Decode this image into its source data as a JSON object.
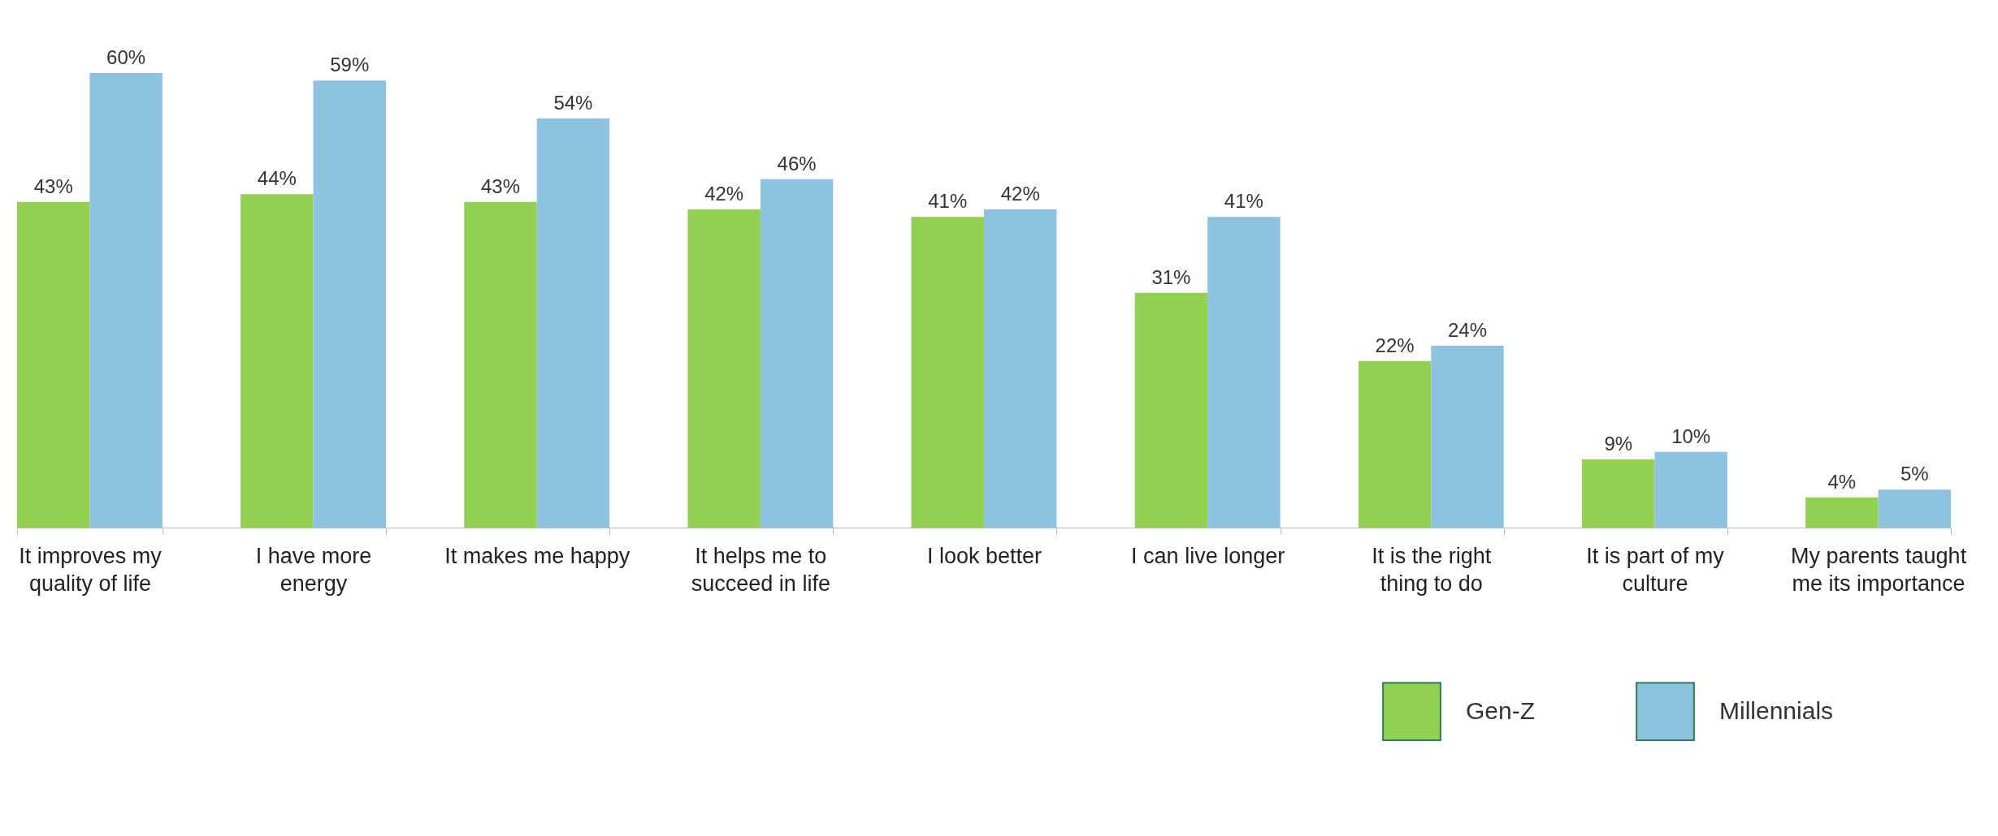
{
  "chart_data": {
    "type": "bar",
    "categories": [
      "It improves my quality of life",
      "I have more energy",
      "It makes me happy",
      "It helps me to succeed in life",
      "I look better",
      "I can live longer",
      "It is the right thing to do",
      "It is part of my culture",
      "My parents taught me its importance"
    ],
    "series": [
      {
        "name": "Gen-Z",
        "color": "#92d050",
        "values": [
          43,
          44,
          43,
          42,
          41,
          31,
          22,
          9,
          4
        ],
        "value_labels": [
          "43%",
          "44%",
          "43%",
          "42%",
          "41%",
          "31%",
          "22%",
          "9%",
          "4%"
        ]
      },
      {
        "name": "Millennials",
        "color": "#8dc3e0",
        "values": [
          60,
          59,
          54,
          46,
          42,
          41,
          24,
          10,
          5
        ],
        "value_labels": [
          "60%",
          "59%",
          "54%",
          "46%",
          "42%",
          "41%",
          "24%",
          "10%",
          "5%"
        ]
      }
    ],
    "legend": "bottom right",
    "grid": false
  }
}
